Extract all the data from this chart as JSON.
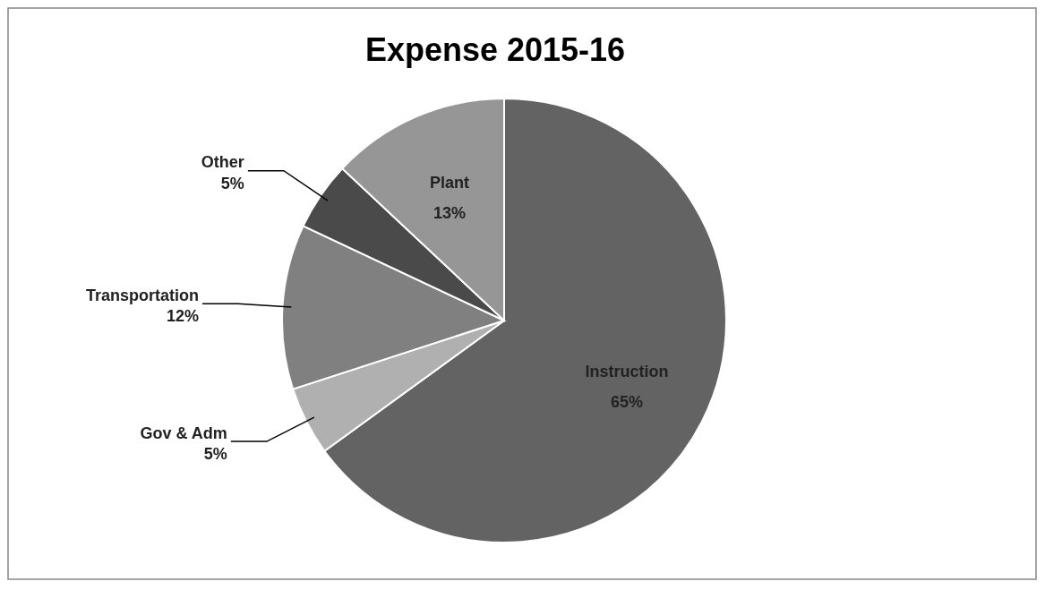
{
  "chart_data": {
    "type": "pie",
    "title": "Expense 2015-16",
    "categories": [
      "Instruction",
      "Gov & Adm",
      "Transportation",
      "Other",
      "Plant"
    ],
    "values": [
      65,
      5,
      12,
      5,
      13
    ],
    "value_labels": [
      "65%",
      "5%",
      "12%",
      "5%",
      "13%"
    ],
    "colors": [
      "#636363",
      "#b0b0b0",
      "#808080",
      "#4a4a4a",
      "#969696"
    ],
    "legend": false
  }
}
